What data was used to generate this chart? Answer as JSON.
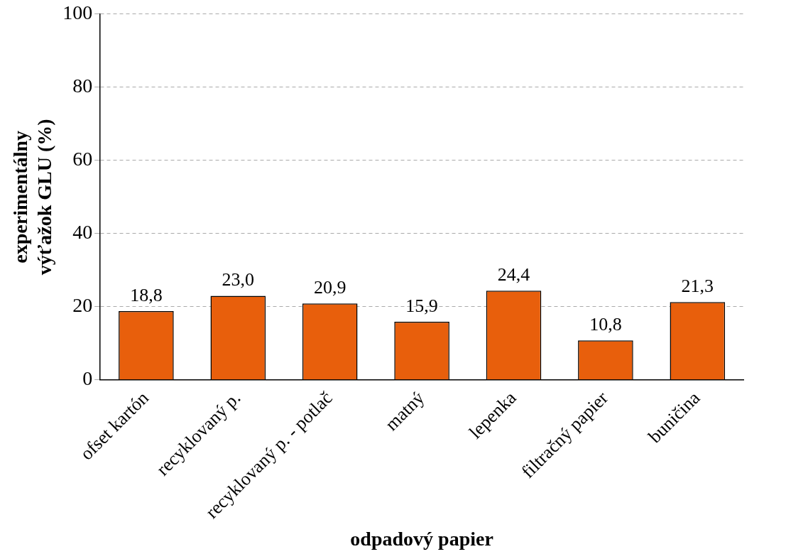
{
  "chart_data": {
    "type": "bar",
    "xlabel": "odpadový papier",
    "ylabel": "experimentálny\nvýťažok GLU (%)",
    "categories": [
      "ofset kartón",
      "recyklovaný p.",
      "recyklovaný p. - potlač",
      "matný",
      "lepenka",
      "filtračný papier",
      "buničina"
    ],
    "values": [
      18.8,
      23.0,
      20.9,
      15.9,
      24.4,
      10.8,
      21.3
    ],
    "value_labels": [
      "18,8",
      "23,0",
      "20,9",
      "15,9",
      "24,4",
      "10,8",
      "21,3"
    ],
    "color": "#e85f0c",
    "ylim": [
      0,
      100
    ],
    "yticks": [
      0,
      20,
      40,
      60,
      80,
      100
    ],
    "grid": "y",
    "legend": false
  }
}
